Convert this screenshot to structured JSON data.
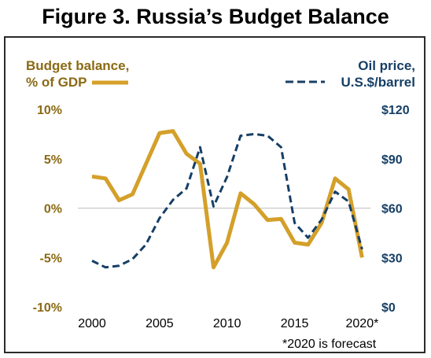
{
  "figure_title": "Figure 3. Russia’s Budget Balance",
  "chart_data": {
    "type": "line",
    "x": [
      2000,
      2001,
      2002,
      2003,
      2004,
      2005,
      2006,
      2007,
      2008,
      2009,
      2010,
      2011,
      2012,
      2013,
      2014,
      2015,
      2016,
      2017,
      2018,
      2019,
      2020
    ],
    "xlim": [
      1999.3,
      2020.5
    ],
    "x_tick_values": [
      2000,
      2005,
      2010,
      2015,
      2020
    ],
    "x_tick_labels": [
      "2000",
      "2005",
      "2010",
      "2015",
      "2020*"
    ],
    "footnote": "*2020 is forecast",
    "grid": false,
    "legend": "top",
    "series": [
      {
        "name": "Budget balance, % of GDP",
        "axis": "left",
        "color": "#D4A02A",
        "style": "solid",
        "legend_label_lines": [
          "Budget balance,",
          "% of GDP"
        ],
        "values": [
          3.2,
          3.0,
          0.8,
          1.4,
          4.5,
          7.6,
          7.8,
          5.5,
          4.5,
          -6.0,
          -3.5,
          1.5,
          0.4,
          -1.2,
          -1.1,
          -3.5,
          -3.7,
          -1.5,
          3.0,
          1.9,
          -5.0
        ]
      },
      {
        "name": "Oil price, U.S.$/barrel",
        "axis": "right",
        "color": "#163F66",
        "style": "dashed",
        "legend_label_lines": [
          "Oil price,",
          "U.S.$/barrel"
        ],
        "values": [
          28,
          24,
          25,
          29,
          38,
          54,
          65,
          72,
          97,
          61,
          79,
          104,
          105,
          104,
          97,
          51,
          42,
          53,
          70,
          64,
          35
        ]
      }
    ],
    "y_left": {
      "ylim": [
        -10,
        10
      ],
      "ticks": [
        -10,
        -5,
        0,
        5,
        10
      ],
      "tick_labels": [
        "-10%",
        "-5%",
        "0%",
        "5%",
        "10%"
      ],
      "color": "#8B6A14"
    },
    "y_right": {
      "ylim": [
        0,
        120
      ],
      "ticks": [
        0,
        30,
        60,
        90,
        120
      ],
      "tick_labels": [
        "$0",
        "$30",
        "$60",
        "$90",
        "$120"
      ],
      "color": "#163F66"
    }
  }
}
